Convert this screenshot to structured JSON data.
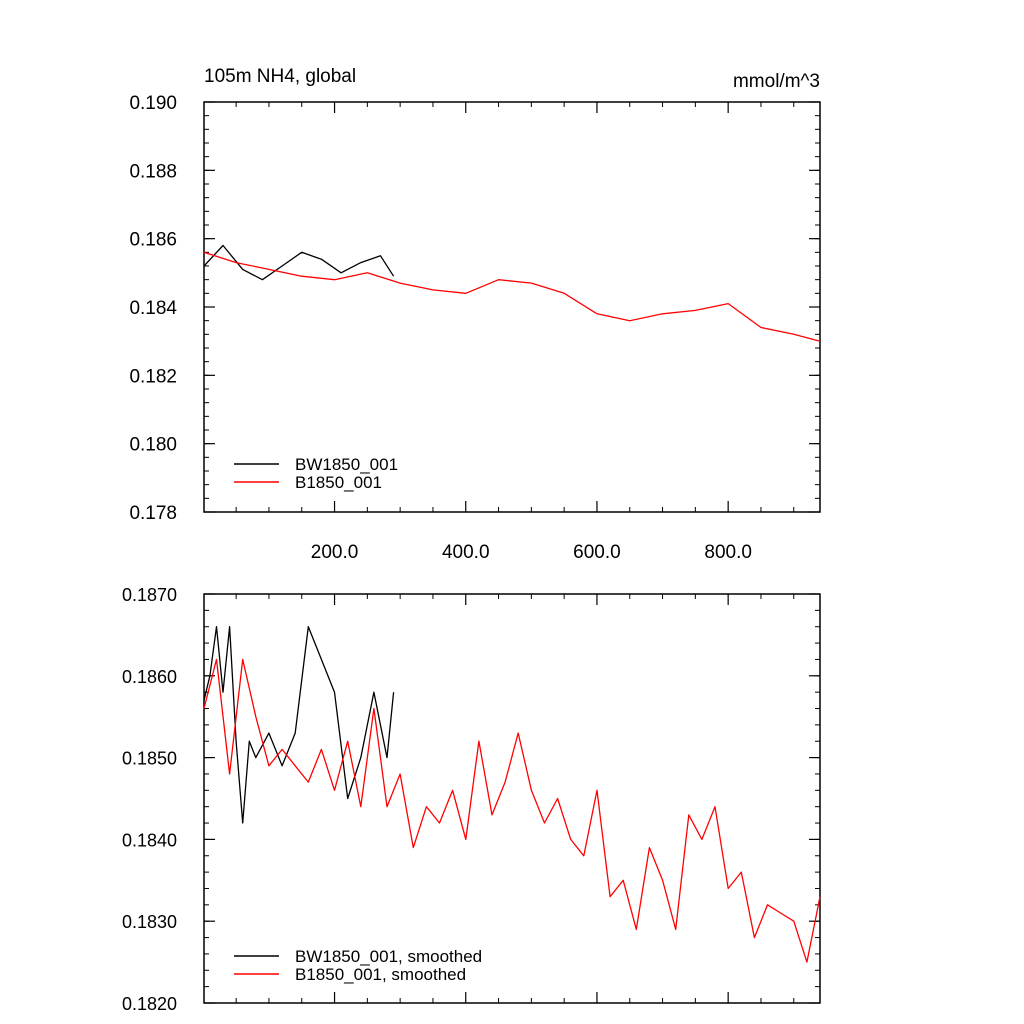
{
  "chart_data": [
    {
      "type": "line",
      "title": "105m NH4, global",
      "units": "mmol/m^3",
      "ylim": [
        0.178,
        0.19
      ],
      "xlim": [
        1,
        940
      ],
      "yticks": [
        "0.178",
        "0.180",
        "0.182",
        "0.184",
        "0.186",
        "0.188",
        "0.190"
      ],
      "xticks": [
        "200.0",
        "400.0",
        "600.0",
        "800.0"
      ],
      "legend_position": "bottom-left",
      "grid": false,
      "series": [
        {
          "name": "BW1850_001",
          "color": "#000000",
          "x": [
            1,
            30,
            60,
            90,
            120,
            150,
            180,
            210,
            240,
            270,
            290
          ],
          "y": [
            0.1852,
            0.1858,
            0.1851,
            0.1848,
            0.1852,
            0.1856,
            0.1854,
            0.185,
            0.1853,
            0.1855,
            0.1849
          ]
        },
        {
          "name": "B1850_001",
          "color": "#ff0000",
          "x": [
            1,
            50,
            100,
            150,
            200,
            250,
            300,
            350,
            400,
            450,
            500,
            550,
            600,
            650,
            700,
            750,
            800,
            850,
            900,
            940
          ],
          "y": [
            0.1856,
            0.1853,
            0.1851,
            0.1849,
            0.1848,
            0.185,
            0.1847,
            0.1845,
            0.1844,
            0.1848,
            0.1847,
            0.1844,
            0.1838,
            0.1836,
            0.1838,
            0.1839,
            0.1841,
            0.1834,
            0.1832,
            0.183
          ]
        }
      ]
    },
    {
      "type": "line",
      "ylim": [
        0.182,
        0.187
      ],
      "xlim": [
        1,
        940
      ],
      "yticks": [
        "0.1820",
        "0.1830",
        "0.1840",
        "0.1850",
        "0.1860",
        "0.1870"
      ],
      "legend_position": "bottom-left",
      "grid": false,
      "series": [
        {
          "name": "BW1850_001, smoothed",
          "color": "#000000",
          "x": [
            1,
            10,
            20,
            30,
            40,
            50,
            60,
            70,
            80,
            100,
            120,
            140,
            160,
            180,
            200,
            220,
            240,
            260,
            280,
            290
          ],
          "y": [
            0.1857,
            0.186,
            0.1866,
            0.1858,
            0.1866,
            0.1852,
            0.1842,
            0.1852,
            0.185,
            0.1853,
            0.1849,
            0.1853,
            0.1866,
            0.1862,
            0.1858,
            0.1845,
            0.185,
            0.1858,
            0.185,
            0.1858
          ]
        },
        {
          "name": "B1850_001, smoothed",
          "color": "#ff0000",
          "x": [
            1,
            20,
            40,
            60,
            80,
            100,
            120,
            140,
            160,
            180,
            200,
            220,
            240,
            260,
            280,
            300,
            320,
            340,
            360,
            380,
            400,
            420,
            440,
            460,
            480,
            500,
            520,
            540,
            560,
            580,
            600,
            620,
            640,
            660,
            680,
            700,
            720,
            740,
            760,
            780,
            800,
            820,
            840,
            860,
            880,
            900,
            920,
            940
          ],
          "y": [
            0.1856,
            0.1862,
            0.1848,
            0.1862,
            0.1855,
            0.1849,
            0.1851,
            0.1849,
            0.1847,
            0.1851,
            0.1846,
            0.1852,
            0.1844,
            0.1856,
            0.1844,
            0.1848,
            0.1839,
            0.1844,
            0.1842,
            0.1846,
            0.184,
            0.1852,
            0.1843,
            0.1847,
            0.1853,
            0.1846,
            0.1842,
            0.1845,
            0.184,
            0.1838,
            0.1846,
            0.1833,
            0.1835,
            0.1829,
            0.1839,
            0.1835,
            0.1829,
            0.1843,
            0.184,
            0.1844,
            0.1834,
            0.1836,
            0.1828,
            0.1832,
            0.1831,
            0.183,
            0.1825,
            0.1833
          ]
        }
      ]
    }
  ]
}
